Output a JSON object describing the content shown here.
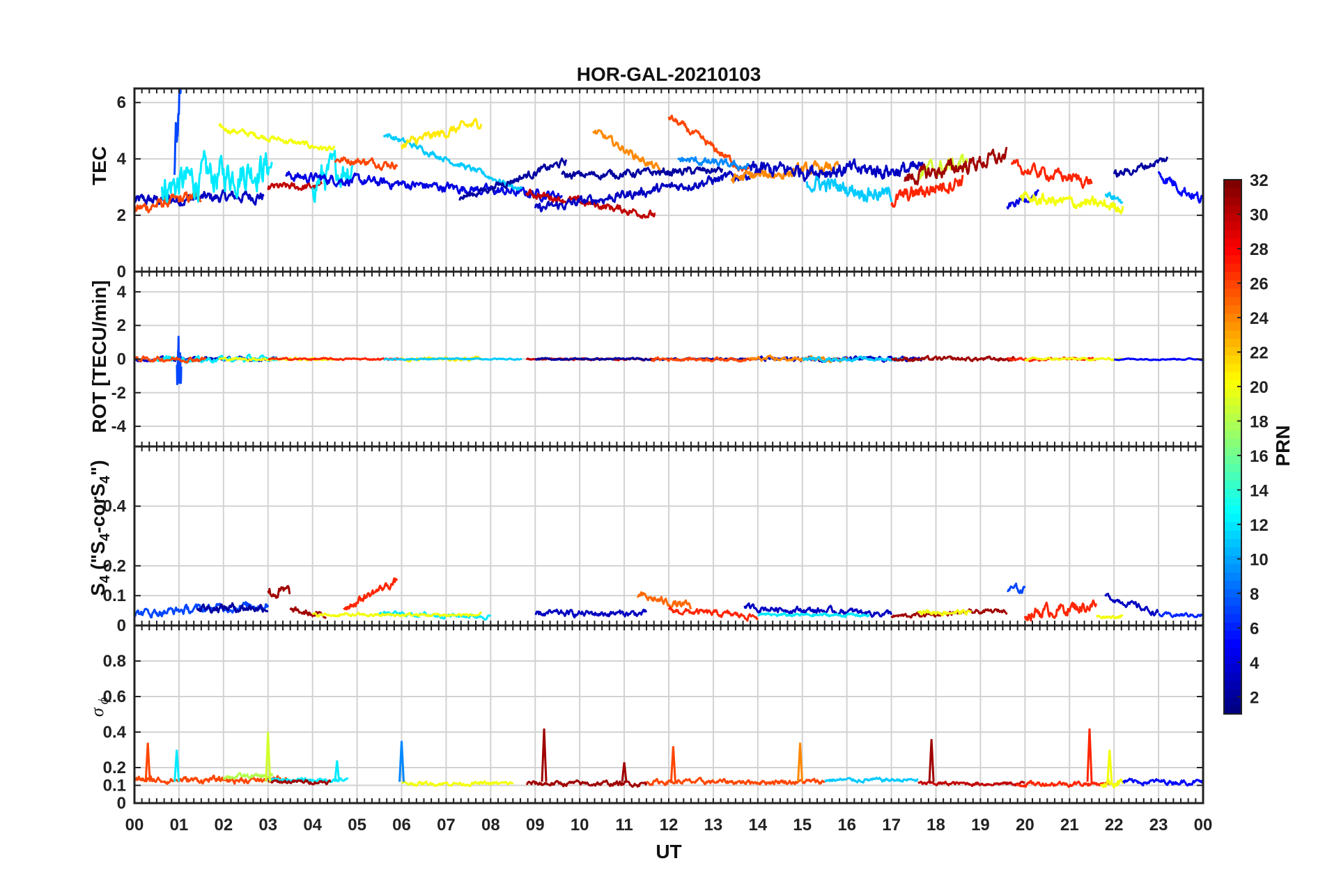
{
  "chart_data": {
    "type": "line",
    "title": "HOR-GAL-20210103",
    "xlabel": "UT",
    "x_ticks": [
      "00",
      "01",
      "02",
      "03",
      "04",
      "05",
      "06",
      "07",
      "08",
      "09",
      "10",
      "11",
      "12",
      "13",
      "14",
      "15",
      "16",
      "17",
      "18",
      "19",
      "20",
      "21",
      "22",
      "23",
      "00"
    ],
    "xlim": [
      0,
      24
    ],
    "grid": true,
    "colorbar": {
      "label": "PRN",
      "colormap": "jet",
      "range": [
        1,
        32
      ],
      "ticks": [
        "2",
        "4",
        "6",
        "8",
        "10",
        "12",
        "14",
        "16",
        "18",
        "20",
        "22",
        "24",
        "26",
        "28",
        "30",
        "32"
      ]
    },
    "panels": [
      {
        "ylabel": "TEC",
        "ylim": [
          0,
          6.5
        ],
        "yticks": [
          "0",
          "2",
          "4",
          "6"
        ],
        "ytick_values": [
          0,
          2,
          4,
          6
        ],
        "series": [
          {
            "prn": 3,
            "t0": 0.0,
            "t1": 2.9,
            "base": 2.5,
            "drift": 0.2,
            "noise": 0.3
          },
          {
            "prn": 26,
            "t0": 0.0,
            "t1": 1.5,
            "base": 2.2,
            "drift": 0.5,
            "noise": 0.3
          },
          {
            "prn": 12,
            "t0": 0.6,
            "t1": 3.1,
            "base": 3.0,
            "drift": 0.8,
            "noise": 0.9
          },
          {
            "prn": 7,
            "t0": 0.9,
            "t1": 1.05,
            "base": 4.0,
            "drift": 2.5,
            "noise": 1.2
          },
          {
            "prn": 20,
            "t0": 1.9,
            "t1": 4.5,
            "base": 5.1,
            "drift": -0.8,
            "noise": 0.15
          },
          {
            "prn": 30,
            "t0": 3.0,
            "t1": 4.2,
            "base": 3.0,
            "drift": 0.0,
            "noise": 0.2
          },
          {
            "prn": 12,
            "t0": 4.0,
            "t1": 4.9,
            "base": 3.2,
            "drift": 0.6,
            "noise": 0.8
          },
          {
            "prn": 26,
            "t0": 4.5,
            "t1": 5.9,
            "base": 4.0,
            "drift": -0.2,
            "noise": 0.2
          },
          {
            "prn": 4,
            "t0": 3.4,
            "t1": 9.6,
            "base": 3.4,
            "drift": -0.7,
            "noise": 0.25
          },
          {
            "prn": 11,
            "t0": 5.6,
            "t1": 8.7,
            "base": 4.9,
            "drift": -2.0,
            "noise": 0.15
          },
          {
            "prn": 21,
            "t0": 6.0,
            "t1": 7.8,
            "base": 4.5,
            "drift": 0.8,
            "noise": 0.25
          },
          {
            "prn": 2,
            "t0": 7.3,
            "t1": 9.7,
            "base": 2.6,
            "drift": 1.3,
            "noise": 0.2
          },
          {
            "prn": 30,
            "t0": 8.8,
            "t1": 11.7,
            "base": 2.8,
            "drift": -0.8,
            "noise": 0.2
          },
          {
            "prn": 3,
            "t0": 9.0,
            "t1": 14.0,
            "base": 2.2,
            "drift": 1.3,
            "noise": 0.25
          },
          {
            "prn": 24,
            "t0": 10.3,
            "t1": 11.8,
            "base": 5.0,
            "drift": -1.4,
            "noise": 0.2
          },
          {
            "prn": 2,
            "t0": 9.6,
            "t1": 13.2,
            "base": 3.4,
            "drift": 0.2,
            "noise": 0.2
          },
          {
            "prn": 26,
            "t0": 12.0,
            "t1": 13.8,
            "base": 5.5,
            "drift": -2.0,
            "noise": 0.2
          },
          {
            "prn": 9,
            "t0": 12.2,
            "t1": 13.8,
            "base": 4.0,
            "drift": -0.3,
            "noise": 0.2
          },
          {
            "prn": 24,
            "t0": 13.4,
            "t1": 15.8,
            "base": 3.3,
            "drift": 0.4,
            "noise": 0.3
          },
          {
            "prn": 3,
            "t0": 13.8,
            "t1": 17.7,
            "base": 3.6,
            "drift": 0.0,
            "noise": 0.4
          },
          {
            "prn": 11,
            "t0": 15.1,
            "t1": 17.0,
            "base": 3.2,
            "drift": -0.5,
            "noise": 0.4
          },
          {
            "prn": 27,
            "t0": 17.0,
            "t1": 18.6,
            "base": 2.5,
            "drift": 0.8,
            "noise": 0.4
          },
          {
            "prn": 19,
            "t0": 17.6,
            "t1": 18.7,
            "base": 3.5,
            "drift": 0.4,
            "noise": 0.4
          },
          {
            "prn": 31,
            "t0": 17.3,
            "t1": 19.6,
            "base": 3.3,
            "drift": 0.8,
            "noise": 0.4
          },
          {
            "prn": 4,
            "t0": 19.6,
            "t1": 20.3,
            "base": 2.3,
            "drift": 0.5,
            "noise": 0.2
          },
          {
            "prn": 27,
            "t0": 19.7,
            "t1": 21.5,
            "base": 3.7,
            "drift": -0.5,
            "noise": 0.3
          },
          {
            "prn": 20,
            "t0": 19.9,
            "t1": 22.2,
            "base": 2.6,
            "drift": -0.3,
            "noise": 0.3
          },
          {
            "prn": 11,
            "t0": 21.8,
            "t1": 22.2,
            "base": 2.8,
            "drift": -0.3,
            "noise": 0.2
          },
          {
            "prn": 2,
            "t0": 22.0,
            "t1": 23.2,
            "base": 3.4,
            "drift": 0.6,
            "noise": 0.2
          },
          {
            "prn": 5,
            "t0": 23.0,
            "t1": 24.0,
            "base": 3.5,
            "drift": -1.0,
            "noise": 0.3
          }
        ]
      },
      {
        "ylabel": "ROT [TECU/min]",
        "ylim": [
          -5.2,
          5.2
        ],
        "yticks": [
          "-4",
          "-2",
          "0",
          "2",
          "4"
        ],
        "ytick_values": [
          -4,
          -2,
          0,
          2,
          4
        ],
        "series": [
          {
            "prn": 3,
            "t0": 0.0,
            "t1": 3.2,
            "base": 0,
            "drift": 0,
            "noise": 0.15
          },
          {
            "prn": 12,
            "t0": 0.5,
            "t1": 3.2,
            "base": 0,
            "drift": 0,
            "noise": 0.25
          },
          {
            "prn": 7,
            "t0": 0.95,
            "t1": 1.05,
            "base": 0,
            "drift": 0,
            "noise": 2.6
          },
          {
            "prn": 26,
            "t0": 0.0,
            "t1": 1.6,
            "base": 0,
            "drift": 0,
            "noise": 0.2
          },
          {
            "prn": 20,
            "t0": 1.9,
            "t1": 4.5,
            "base": 0,
            "drift": 0,
            "noise": 0.12
          },
          {
            "prn": 27,
            "t0": 3.0,
            "t1": 6.0,
            "base": 0,
            "drift": 0,
            "noise": 0.08
          },
          {
            "prn": 21,
            "t0": 6.0,
            "t1": 7.8,
            "base": 0,
            "drift": 0,
            "noise": 0.15
          },
          {
            "prn": 11,
            "t0": 5.6,
            "t1": 8.7,
            "base": 0,
            "drift": 0,
            "noise": 0.06
          },
          {
            "prn": 30,
            "t0": 8.8,
            "t1": 11.7,
            "base": 0,
            "drift": 0,
            "noise": 0.08
          },
          {
            "prn": 2,
            "t0": 9.0,
            "t1": 14.0,
            "base": 0,
            "drift": 0,
            "noise": 0.08
          },
          {
            "prn": 26,
            "t0": 11.6,
            "t1": 14.0,
            "base": 0,
            "drift": 0,
            "noise": 0.15
          },
          {
            "prn": 3,
            "t0": 14.0,
            "t1": 17.7,
            "base": 0,
            "drift": 0,
            "noise": 0.18
          },
          {
            "prn": 24,
            "t0": 13.8,
            "t1": 16.0,
            "base": 0,
            "drift": 0,
            "noise": 0.18
          },
          {
            "prn": 11,
            "t0": 15.0,
            "t1": 17.3,
            "base": 0,
            "drift": 0,
            "noise": 0.15
          },
          {
            "prn": 31,
            "t0": 17.0,
            "t1": 19.8,
            "base": 0,
            "drift": 0,
            "noise": 0.18
          },
          {
            "prn": 27,
            "t0": 19.6,
            "t1": 21.6,
            "base": 0,
            "drift": 0,
            "noise": 0.12
          },
          {
            "prn": 20,
            "t0": 20.0,
            "t1": 22.2,
            "base": 0,
            "drift": 0,
            "noise": 0.1
          },
          {
            "prn": 5,
            "t0": 22.0,
            "t1": 24.0,
            "base": 0,
            "drift": 0,
            "noise": 0.06
          }
        ]
      },
      {
        "ylabel": "S_4 (\"S_4-corS_4\")",
        "ylim": [
          0,
          0.6
        ],
        "yticks": [
          "0",
          "0.1",
          "0.2",
          "0.4"
        ],
        "ytick_values": [
          0,
          0.1,
          0.2,
          0.4
        ],
        "series": [
          {
            "prn": 7,
            "t0": 0.0,
            "t1": 3.0,
            "base": 0.04,
            "drift": 0.03,
            "noise": 0.02
          },
          {
            "prn": 2,
            "t0": 1.4,
            "t1": 3.0,
            "base": 0.06,
            "drift": 0.0,
            "noise": 0.02
          },
          {
            "prn": 31,
            "t0": 3.0,
            "t1": 3.5,
            "base": 0.11,
            "drift": 0.0,
            "noise": 0.03
          },
          {
            "prn": 31,
            "t0": 3.5,
            "t1": 4.3,
            "base": 0.05,
            "drift": -0.02,
            "noise": 0.015
          },
          {
            "prn": 27,
            "t0": 4.7,
            "t1": 5.9,
            "base": 0.06,
            "drift": 0.09,
            "noise": 0.02
          },
          {
            "prn": 12,
            "t0": 5.5,
            "t1": 8.0,
            "base": 0.04,
            "drift": -0.01,
            "noise": 0.01
          },
          {
            "prn": 20,
            "t0": 4.0,
            "t1": 7.8,
            "base": 0.035,
            "drift": 0,
            "noise": 0.008
          },
          {
            "prn": 3,
            "t0": 9.0,
            "t1": 11.5,
            "base": 0.04,
            "drift": 0.0,
            "noise": 0.015
          },
          {
            "prn": 25,
            "t0": 11.3,
            "t1": 12.5,
            "base": 0.1,
            "drift": -0.04,
            "noise": 0.02
          },
          {
            "prn": 27,
            "t0": 12.0,
            "t1": 14.0,
            "base": 0.05,
            "drift": -0.02,
            "noise": 0.015
          },
          {
            "prn": 3,
            "t0": 13.7,
            "t1": 17.0,
            "base": 0.06,
            "drift": -0.02,
            "noise": 0.015
          },
          {
            "prn": 12,
            "t0": 14.0,
            "t1": 16.5,
            "base": 0.035,
            "drift": 0.0,
            "noise": 0.008
          },
          {
            "prn": 31,
            "t0": 17.0,
            "t1": 19.6,
            "base": 0.03,
            "drift": 0.02,
            "noise": 0.01
          },
          {
            "prn": 20,
            "t0": 17.6,
            "t1": 18.8,
            "base": 0.045,
            "drift": 0.0,
            "noise": 0.012
          },
          {
            "prn": 7,
            "t0": 19.6,
            "t1": 20.0,
            "base": 0.12,
            "drift": 0.0,
            "noise": 0.02
          },
          {
            "prn": 27,
            "t0": 20.0,
            "t1": 21.6,
            "base": 0.04,
            "drift": 0.03,
            "noise": 0.03
          },
          {
            "prn": 20,
            "t0": 21.6,
            "t1": 22.2,
            "base": 0.03,
            "drift": 0.0,
            "noise": 0.008
          },
          {
            "prn": 3,
            "t0": 21.8,
            "t1": 23.0,
            "base": 0.1,
            "drift": -0.06,
            "noise": 0.015
          },
          {
            "prn": 6,
            "t0": 23.0,
            "t1": 24.0,
            "base": 0.035,
            "drift": 0.0,
            "noise": 0.01
          }
        ]
      },
      {
        "ylabel": "σ_ϕ",
        "ylim": [
          0,
          1.0
        ],
        "yticks": [
          "0",
          "0.1",
          "0.2",
          "0.4",
          "0.6",
          "0.8"
        ],
        "ytick_values": [
          0,
          0.1,
          0.2,
          0.4,
          0.6,
          0.8
        ],
        "series": [
          {
            "prn": 26,
            "t0": 0.0,
            "t1": 3.5,
            "base": 0.13,
            "drift": 0.0,
            "noise": 0.025
          },
          {
            "prn": 18,
            "t0": 2.0,
            "t1": 3.1,
            "base": 0.15,
            "drift": 0.0,
            "noise": 0.02
          },
          {
            "prn": 12,
            "t0": 3.0,
            "t1": 4.8,
            "base": 0.13,
            "drift": 0.0,
            "noise": 0.015
          },
          {
            "prn": 31,
            "t0": 3.0,
            "t1": 4.4,
            "base": 0.12,
            "drift": 0.0,
            "noise": 0.015
          },
          {
            "prn": 20,
            "t0": 6.0,
            "t1": 8.5,
            "base": 0.11,
            "drift": 0.0,
            "noise": 0.015
          },
          {
            "prn": 31,
            "t0": 8.8,
            "t1": 11.5,
            "base": 0.11,
            "drift": 0.0,
            "noise": 0.02
          },
          {
            "prn": 26,
            "t0": 11.5,
            "t1": 15.5,
            "base": 0.12,
            "drift": 0.0,
            "noise": 0.02
          },
          {
            "prn": 11,
            "t0": 15.5,
            "t1": 17.6,
            "base": 0.13,
            "drift": 0.0,
            "noise": 0.015
          },
          {
            "prn": 30,
            "t0": 17.6,
            "t1": 20.0,
            "base": 0.11,
            "drift": 0.0,
            "noise": 0.015
          },
          {
            "prn": 27,
            "t0": 19.8,
            "t1": 21.9,
            "base": 0.11,
            "drift": 0.0,
            "noise": 0.02
          },
          {
            "prn": 20,
            "t0": 21.7,
            "t1": 22.2,
            "base": 0.12,
            "drift": 0.0,
            "noise": 0.04
          },
          {
            "prn": 5,
            "t0": 22.2,
            "t1": 24.0,
            "base": 0.12,
            "drift": 0.0,
            "noise": 0.02
          }
        ],
        "spikes": [
          {
            "prn": 26,
            "t": 0.3,
            "v": 0.34
          },
          {
            "prn": 12,
            "t": 0.95,
            "v": 0.3
          },
          {
            "prn": 19,
            "t": 3.0,
            "v": 0.4
          },
          {
            "prn": 12,
            "t": 4.55,
            "v": 0.24
          },
          {
            "prn": 9,
            "t": 6.0,
            "v": 0.35
          },
          {
            "prn": 31,
            "t": 9.2,
            "v": 0.42
          },
          {
            "prn": 31,
            "t": 11.0,
            "v": 0.23
          },
          {
            "prn": 26,
            "t": 12.1,
            "v": 0.32
          },
          {
            "prn": 24,
            "t": 14.95,
            "v": 0.34
          },
          {
            "prn": 31,
            "t": 17.9,
            "v": 0.36
          },
          {
            "prn": 27,
            "t": 21.45,
            "v": 0.42
          },
          {
            "prn": 20,
            "t": 21.9,
            "v": 0.3
          }
        ]
      }
    ]
  }
}
